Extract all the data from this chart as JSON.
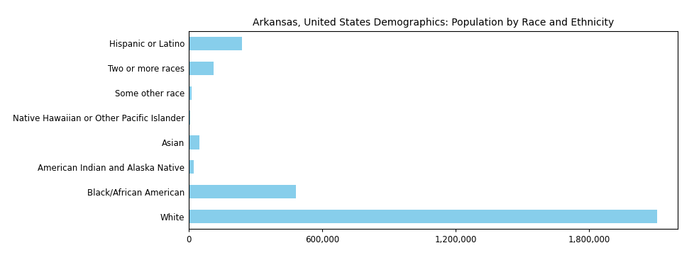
{
  "title": "Arkansas, United States Demographics: Population by Race and Ethnicity",
  "categories": [
    "White",
    "Black/African American",
    "American Indian and Alaska Native",
    "Asian",
    "Native Hawaiian or Other Pacific Islander",
    "Some other race",
    "Two or more races",
    "Hispanic or Latino"
  ],
  "values": [
    2107000,
    482000,
    22000,
    47000,
    7000,
    12000,
    113000,
    238000
  ],
  "bar_color": "#87CEEB",
  "xlim": [
    0,
    2200000
  ],
  "xticks": [
    0,
    600000,
    1200000,
    1800000
  ],
  "xticklabels": [
    "0",
    "600,000",
    "1,200,000",
    "1,800,000"
  ],
  "background_color": "#ffffff",
  "title_fontsize": 10,
  "tick_fontsize": 8.5
}
